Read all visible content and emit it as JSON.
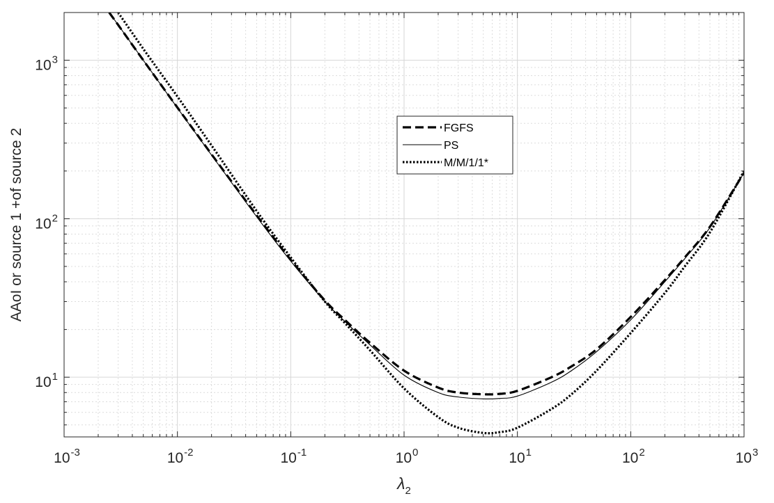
{
  "chart_data": {
    "type": "line",
    "xscale": "log",
    "yscale": "log",
    "xlim": [
      0.001,
      1000
    ],
    "ylim": [
      4.2,
      2000
    ],
    "xlabel": "λ",
    "xlabel_subscript": "2",
    "ylabel": "AAoI or source 1 +of source 2",
    "grid": true,
    "minor_grid": true,
    "legend_position": "top-center",
    "x_ticks": [
      {
        "base": "10",
        "exp": "-3",
        "value": 0.001
      },
      {
        "base": "10",
        "exp": "-2",
        "value": 0.01
      },
      {
        "base": "10",
        "exp": "-1",
        "value": 0.1
      },
      {
        "base": "10",
        "exp": "0",
        "value": 1
      },
      {
        "base": "10",
        "exp": "1",
        "value": 10
      },
      {
        "base": "10",
        "exp": "2",
        "value": 100
      },
      {
        "base": "10",
        "exp": "3",
        "value": 1000
      }
    ],
    "y_ticks": [
      {
        "base": "10",
        "exp": "1",
        "value": 10
      },
      {
        "base": "10",
        "exp": "2",
        "value": 100
      },
      {
        "base": "10",
        "exp": "3",
        "value": 1000
      }
    ],
    "series": [
      {
        "name": "FGFS",
        "style": "dashed",
        "color": "#000000",
        "x": [
          0.0025,
          0.003,
          0.005,
          0.01,
          0.02,
          0.05,
          0.1,
          0.2,
          0.3,
          0.5,
          1,
          2,
          3,
          5,
          7,
          10,
          20,
          30,
          50,
          100,
          200,
          300,
          500,
          1000
        ],
        "y": [
          2000,
          1670,
          1000,
          503,
          255,
          105,
          55,
          30.5,
          23,
          16.5,
          11,
          8.6,
          8.0,
          7.8,
          7.85,
          8.2,
          10,
          11.7,
          15,
          24,
          41,
          57,
          89,
          195
        ]
      },
      {
        "name": "PS",
        "style": "solid",
        "color": "#000000",
        "x": [
          0.0025,
          0.003,
          0.005,
          0.01,
          0.02,
          0.05,
          0.1,
          0.2,
          0.3,
          0.5,
          1,
          2,
          3,
          5,
          7,
          10,
          20,
          30,
          50,
          100,
          200,
          300,
          500,
          1000
        ],
        "y": [
          2000,
          1670,
          1000,
          500,
          252,
          103,
          54,
          30,
          22.5,
          16,
          10.3,
          8.0,
          7.5,
          7.3,
          7.35,
          7.6,
          9.3,
          11,
          14.5,
          23,
          40,
          56,
          88,
          195
        ]
      },
      {
        "name": "M/M/1/1*",
        "style": "dotted",
        "color": "#000000",
        "x": [
          0.003,
          0.005,
          0.01,
          0.02,
          0.05,
          0.1,
          0.2,
          0.3,
          0.5,
          1,
          2,
          3,
          5,
          7,
          10,
          20,
          30,
          50,
          100,
          200,
          300,
          500,
          1000
        ],
        "y": [
          2000,
          1180,
          590,
          290,
          112,
          57,
          30,
          22,
          14.8,
          8.5,
          5.6,
          4.8,
          4.45,
          4.5,
          4.8,
          6.3,
          7.8,
          11,
          19,
          34,
          50,
          82,
          200
        ]
      }
    ]
  }
}
